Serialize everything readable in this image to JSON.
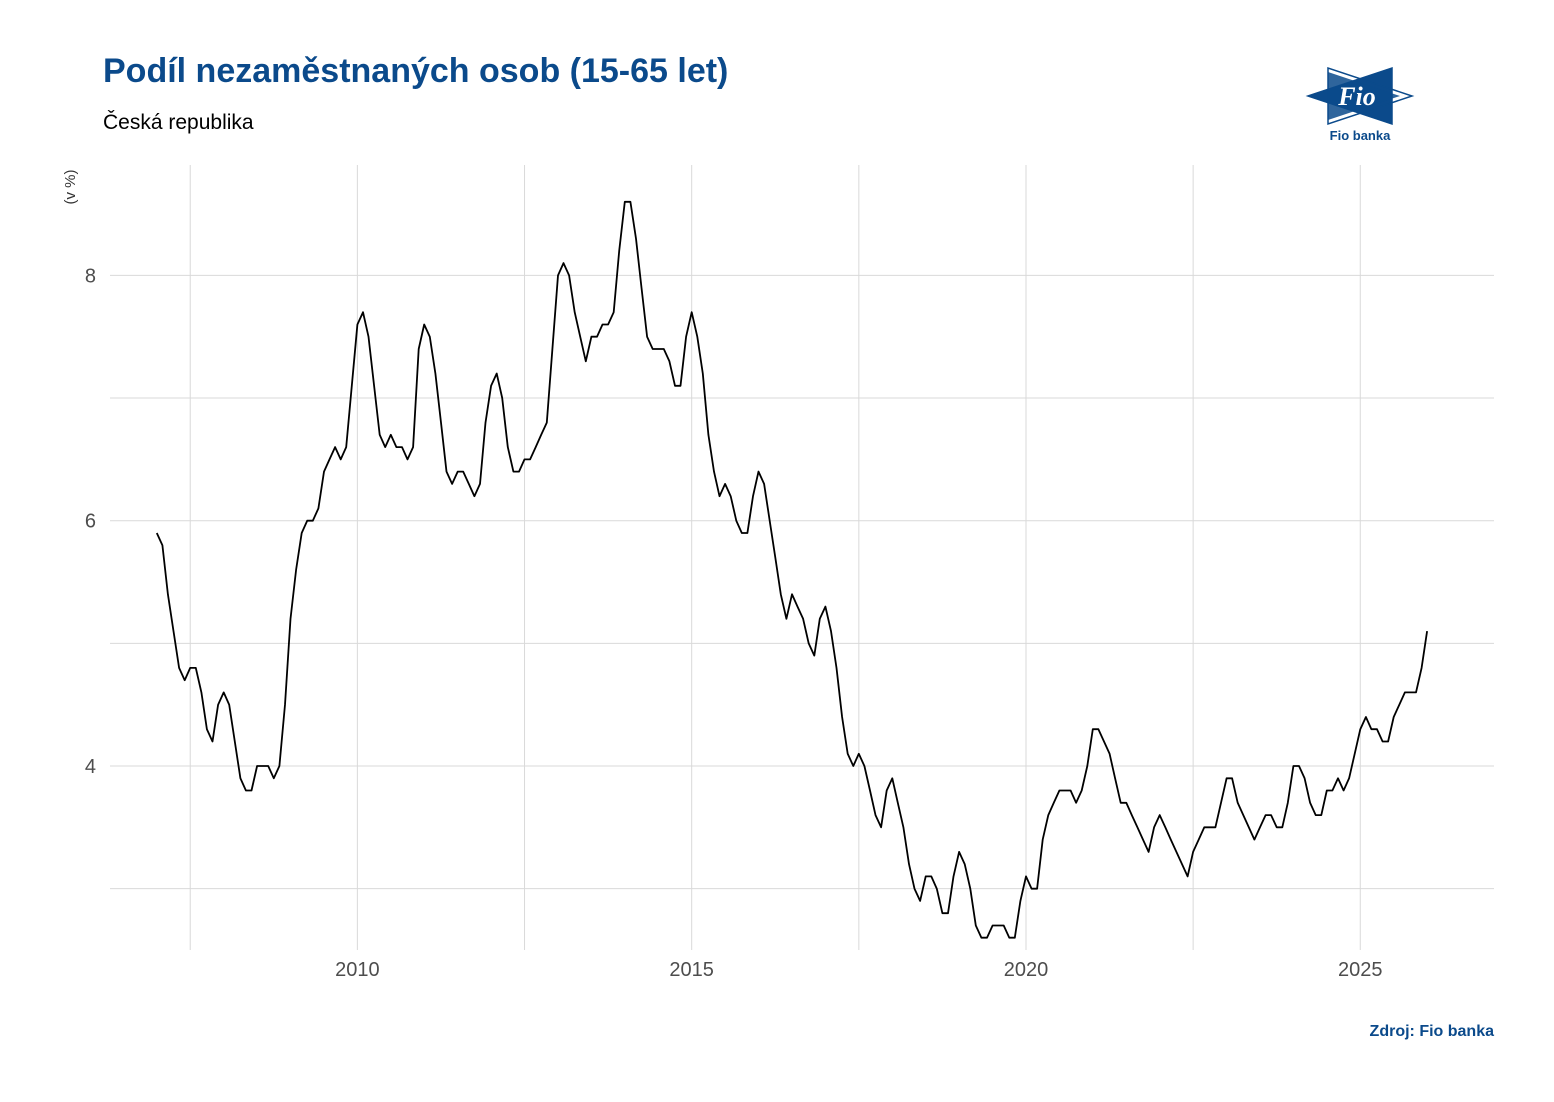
{
  "header": {
    "title": "Podíl nezaměstnaných osob (15-65 let)",
    "subtitle": "Česká republika"
  },
  "logo": {
    "icon": "fio-banka-logo",
    "text": "Fio",
    "caption": "Fio banka",
    "color": "#0b4a8b"
  },
  "footer": {
    "source": "Zdroj: Fio banka"
  },
  "chart_data": {
    "type": "line",
    "title": "Podíl nezaměstnaných osob (15-65 let)",
    "subtitle": "Česká republika",
    "ylabel": "(v %)",
    "xlabel": "",
    "xlim": [
      2006.3,
      2027.0
    ],
    "ylim": [
      2.5,
      8.9
    ],
    "xticks": [
      2010,
      2015,
      2020,
      2025
    ],
    "xtick_labels": [
      "2010",
      "2015",
      "2020",
      "2025"
    ],
    "yticks": [
      4,
      6,
      8
    ],
    "ytick_labels": [
      "4",
      "6",
      "8"
    ],
    "grid": true,
    "line_color": "#000000",
    "series": [
      {
        "x_start": 2007.0,
        "x_step": 0.0833333,
        "values": [
          5.9,
          5.8,
          5.4,
          5.1,
          4.8,
          4.7,
          4.8,
          4.8,
          4.6,
          4.3,
          4.2,
          4.5,
          4.6,
          4.5,
          4.2,
          3.9,
          3.8,
          3.8,
          4.0,
          4.0,
          4.0,
          3.9,
          4.0,
          4.5,
          5.2,
          5.6,
          5.9,
          6.0,
          6.0,
          6.1,
          6.4,
          6.5,
          6.6,
          6.5,
          6.6,
          7.1,
          7.6,
          7.7,
          7.5,
          7.1,
          6.7,
          6.6,
          6.7,
          6.6,
          6.6,
          6.5,
          6.6,
          7.4,
          7.6,
          7.5,
          7.2,
          6.8,
          6.4,
          6.3,
          6.4,
          6.4,
          6.3,
          6.2,
          6.3,
          6.8,
          7.1,
          7.2,
          7.0,
          6.6,
          6.4,
          6.4,
          6.5,
          6.5,
          6.6,
          6.7,
          6.8,
          7.4,
          8.0,
          8.1,
          8.0,
          7.7,
          7.5,
          7.3,
          7.5,
          7.5,
          7.6,
          7.6,
          7.7,
          8.2,
          8.6,
          8.6,
          8.3,
          7.9,
          7.5,
          7.4,
          7.4,
          7.4,
          7.3,
          7.1,
          7.1,
          7.5,
          7.7,
          7.5,
          7.2,
          6.7,
          6.4,
          6.2,
          6.3,
          6.2,
          6.0,
          5.9,
          5.9,
          6.2,
          6.4,
          6.3,
          6.0,
          5.7,
          5.4,
          5.2,
          5.4,
          5.3,
          5.2,
          5.0,
          4.9,
          5.2,
          5.3,
          5.1,
          4.8,
          4.4,
          4.1,
          4.0,
          4.1,
          4.0,
          3.8,
          3.6,
          3.5,
          3.8,
          3.9,
          3.7,
          3.5,
          3.2,
          3.0,
          2.9,
          3.1,
          3.1,
          3.0,
          2.8,
          2.8,
          3.1,
          3.3,
          3.2,
          3.0,
          2.7,
          2.6,
          2.6,
          2.7,
          2.7,
          2.7,
          2.6,
          2.6,
          2.9,
          3.1,
          3.0,
          3.0,
          3.4,
          3.6,
          3.7,
          3.8,
          3.8,
          3.8,
          3.7,
          3.8,
          4.0,
          4.3,
          4.3,
          4.2,
          4.1,
          3.9,
          3.7,
          3.7,
          3.6,
          3.5,
          3.4,
          3.3,
          3.5,
          3.6,
          3.5,
          3.4,
          3.3,
          3.2,
          3.1,
          3.3,
          3.4,
          3.5,
          3.5,
          3.5,
          3.7,
          3.9,
          3.9,
          3.7,
          3.6,
          3.5,
          3.4,
          3.5,
          3.6,
          3.6,
          3.5,
          3.5,
          3.7,
          4.0,
          4.0,
          3.9,
          3.7,
          3.6,
          3.6,
          3.8,
          3.8,
          3.9,
          3.8,
          3.9,
          4.1,
          4.3,
          4.4,
          4.3,
          4.3,
          4.2,
          4.2,
          4.4,
          4.5,
          4.6,
          4.6,
          4.6,
          4.8,
          5.1
        ]
      }
    ]
  }
}
